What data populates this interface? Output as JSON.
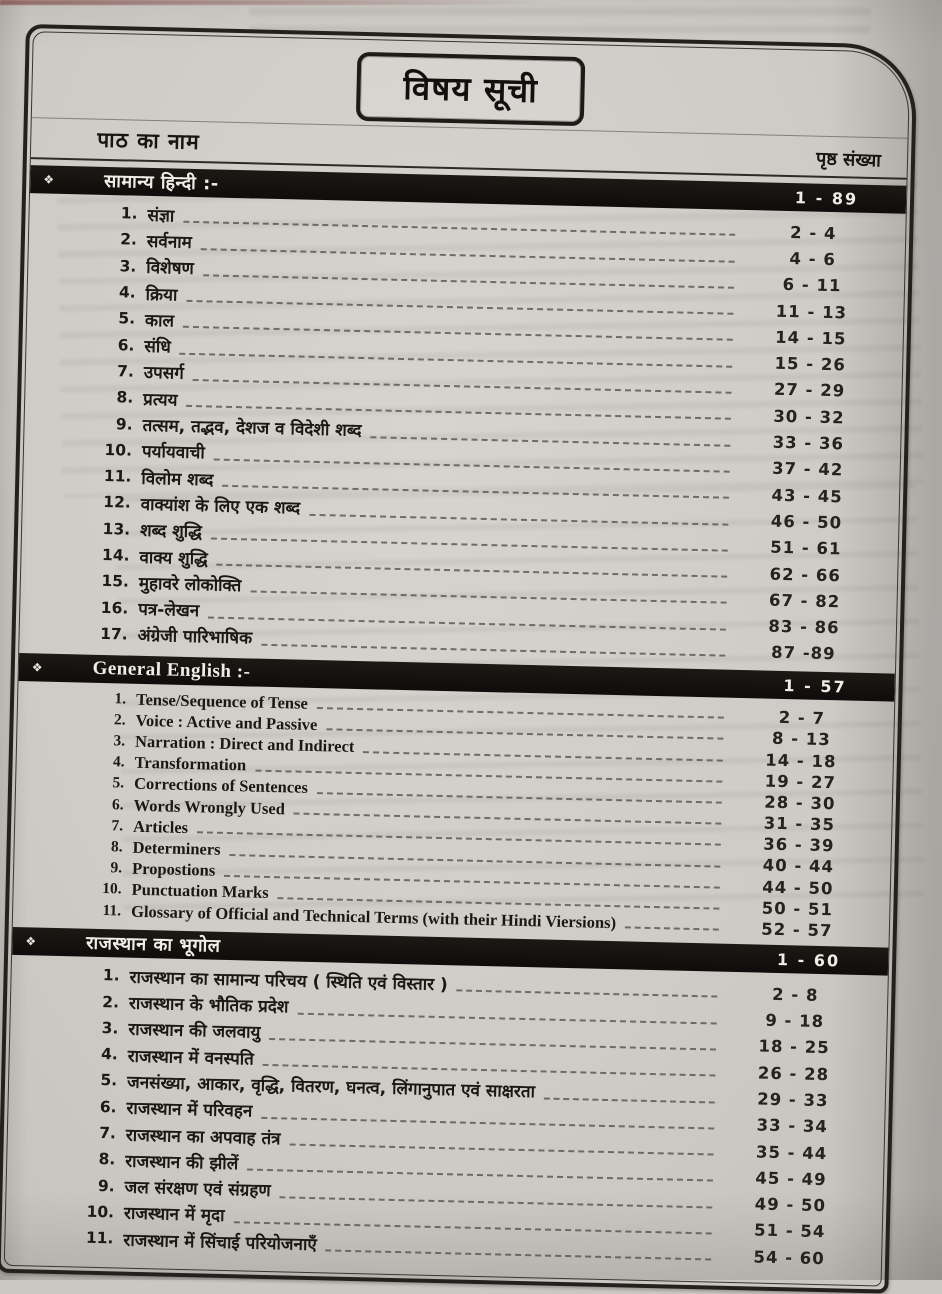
{
  "page": {
    "title": "विषय सूची",
    "header": {
      "name_col": "पाठ का नाम",
      "page_col": "पृष्ठ संख्या"
    },
    "sections": [
      {
        "marker": "❖",
        "title": "सामान्य हिन्दी :-",
        "range": "1 - 89",
        "latin": false,
        "items": [
          {
            "no": "1.",
            "label": "संज्ञा",
            "pages": "2 - 4"
          },
          {
            "no": "2.",
            "label": "सर्वनाम",
            "pages": "4 - 6"
          },
          {
            "no": "3.",
            "label": "विशेषण",
            "pages": "6 - 11"
          },
          {
            "no": "4.",
            "label": "क्रिया",
            "pages": "11 - 13"
          },
          {
            "no": "5.",
            "label": "काल",
            "pages": "14 - 15"
          },
          {
            "no": "6.",
            "label": "संधि",
            "pages": "15 - 26"
          },
          {
            "no": "7.",
            "label": "उपसर्ग",
            "pages": "27 - 29"
          },
          {
            "no": "8.",
            "label": "प्रत्यय",
            "pages": "30 - 32"
          },
          {
            "no": "9.",
            "label": "तत्सम, तद्भव, देशज व विदेशी शब्द",
            "pages": "33 - 36"
          },
          {
            "no": "10.",
            "label": "पर्यायवाची",
            "pages": "37 - 42"
          },
          {
            "no": "11.",
            "label": "विलोम शब्द",
            "pages": "43 - 45"
          },
          {
            "no": "12.",
            "label": "वाक्यांश के लिए एक शब्द",
            "pages": "46 - 50"
          },
          {
            "no": "13.",
            "label": "शब्द शुद्धि",
            "pages": "51 - 61"
          },
          {
            "no": "14.",
            "label": "वाक्य शुद्धि",
            "pages": "62 - 66"
          },
          {
            "no": "15.",
            "label": "मुहावरे लोकोक्ति",
            "pages": "67 - 82"
          },
          {
            "no": "16.",
            "label": "पत्र-लेखन",
            "pages": "83 - 86"
          },
          {
            "no": "17.",
            "label": "अंग्रेजी पारिभाषिक",
            "pages": "87 -89"
          }
        ]
      },
      {
        "marker": "❖",
        "title": "General English :-",
        "range": "1 - 57",
        "latin": true,
        "items": [
          {
            "no": "1.",
            "label": "Tense/Sequence of Tense",
            "pages": "2 - 7"
          },
          {
            "no": "2.",
            "label": "Voice : Active and Passive",
            "pages": "8 - 13"
          },
          {
            "no": "3.",
            "label": "Narration : Direct and Indirect",
            "pages": "14 - 18"
          },
          {
            "no": "4.",
            "label": "Transformation",
            "pages": "19 - 27"
          },
          {
            "no": "5.",
            "label": "Corrections of Sentences",
            "pages": "28 - 30"
          },
          {
            "no": "6.",
            "label": "Words Wrongly Used",
            "pages": "31 - 35"
          },
          {
            "no": "7.",
            "label": "Articles",
            "pages": "36 - 39"
          },
          {
            "no": "8.",
            "label": "Determiners",
            "pages": "40 - 44"
          },
          {
            "no": "9.",
            "label": "Propostions",
            "pages": "44 - 50"
          },
          {
            "no": "10.",
            "label": "Punctuation Marks",
            "pages": "50 - 51"
          },
          {
            "no": "11.",
            "label": "Glossary of Official and Technical Terms (with their Hindi Viersions)",
            "pages": "52 - 57"
          }
        ]
      },
      {
        "marker": "❖",
        "title": "राजस्थान का भूगोल",
        "range": "1 - 60",
        "latin": false,
        "items": [
          {
            "no": "1.",
            "label": "राजस्थान का सामान्य परिचय ( स्थिति एवं विस्तार )",
            "pages": "2 - 8"
          },
          {
            "no": "2.",
            "label": "राजस्थान के भौतिक प्रदेश",
            "pages": "9 - 18"
          },
          {
            "no": "3.",
            "label": "राजस्थान की जलवायु",
            "pages": "18 - 25"
          },
          {
            "no": "4.",
            "label": "राजस्थान में वनस्पति",
            "pages": "26 - 28"
          },
          {
            "no": "5.",
            "label": "जनसंख्या, आकार, वृद्धि, वितरण, घनत्व, लिंगानुपात एवं साक्षरता",
            "pages": "29 - 33"
          },
          {
            "no": "6.",
            "label": "राजस्थान में परिवहन",
            "pages": "33 - 34"
          },
          {
            "no": "7.",
            "label": "राजस्थान का अपवाह तंत्र",
            "pages": "35 - 44"
          },
          {
            "no": "8.",
            "label": "राजस्थान की झीलें",
            "pages": "45 - 49"
          },
          {
            "no": "9.",
            "label": "जल संरक्षण एवं संग्रहण",
            "pages": "49 - 50"
          },
          {
            "no": "10.",
            "label": "राजस्थान में मृदा",
            "pages": "51 - 54"
          },
          {
            "no": "11.",
            "label": "राजस्थान में सिंचाई परियोजनाएँ",
            "pages": "54 - 60"
          }
        ]
      }
    ]
  },
  "colors": {
    "paper": "#cfccc7",
    "section_bar": "#14120f",
    "section_bar_text": "#f0ede6",
    "ink": "#1b1814",
    "photo_edge_red": "#6e2826"
  }
}
